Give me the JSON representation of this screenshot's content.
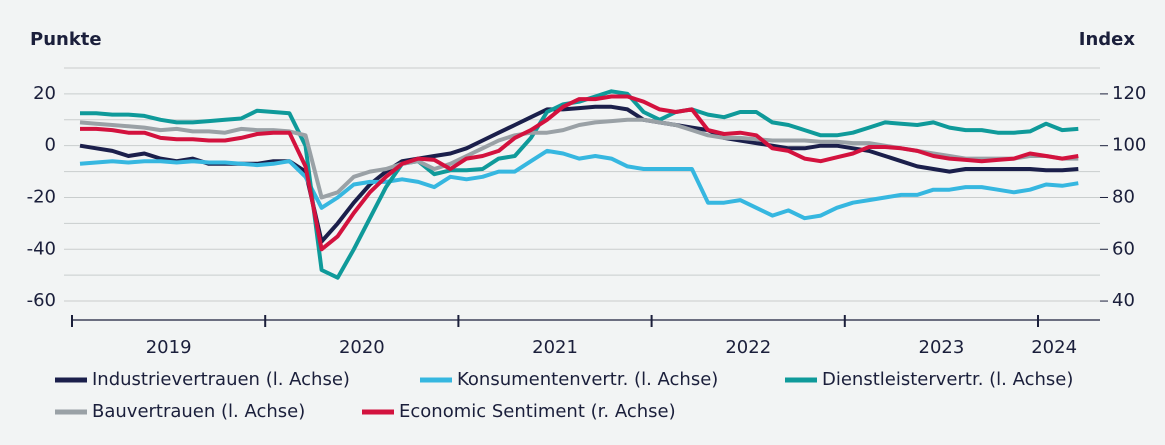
{
  "chart_data": {
    "type": "line",
    "ylabel": "Punkte",
    "y2label": "Index",
    "ylim": [
      -65,
      30
    ],
    "yticks": [
      -60,
      -40,
      -20,
      0,
      20
    ],
    "yminor": [
      -50,
      -30,
      -10,
      10,
      30
    ],
    "y2lim": [
      35,
      130
    ],
    "y2ticks": [
      40,
      60,
      80,
      100,
      120
    ],
    "grid": true,
    "legend": "bottom",
    "categories": [
      null,
      null,
      null,
      null,
      null,
      null,
      "2019",
      null,
      null,
      null,
      null,
      null,
      null,
      null,
      null,
      null,
      null,
      null,
      "2020",
      null,
      null,
      null,
      null,
      null,
      null,
      null,
      null,
      null,
      null,
      null,
      "2021",
      null,
      null,
      null,
      null,
      null,
      null,
      null,
      null,
      null,
      null,
      null,
      "2022",
      null,
      null,
      null,
      null,
      null,
      null,
      null,
      null,
      null,
      null,
      null,
      "2023",
      null,
      null,
      null,
      null,
      null,
      null,
      "2024",
      null
    ],
    "series": [
      {
        "name": "Industrievertrauen (l. Achse)",
        "color": "#1b1f4b",
        "values": [
          0,
          -1,
          -2,
          -4,
          -3,
          -5,
          -6,
          -5,
          -7,
          -7,
          -7,
          -7,
          -6,
          -6,
          -10,
          -37,
          -30,
          -22,
          -15,
          -10,
          -6,
          -5,
          -4,
          -3,
          -1,
          2,
          5,
          8,
          11,
          14,
          14,
          14.5,
          15,
          15,
          14,
          10,
          9,
          8,
          7,
          6,
          3,
          2,
          1,
          0,
          -1,
          -1,
          0,
          0,
          -1,
          -2,
          -4,
          -6,
          -8,
          -9,
          -10,
          -9,
          -9,
          -9,
          -9,
          -9,
          -9.5,
          -9.5,
          -9
        ]
      },
      {
        "name": "Konsumentenvertr. (l. Achse)",
        "color": "#36b7e0",
        "values": [
          -7,
          -6.5,
          -6,
          -6.5,
          -6,
          -6,
          -6.5,
          -6,
          -6.5,
          -6.5,
          -7,
          -7.5,
          -7,
          -6,
          -12,
          -24,
          -20,
          -15,
          -14,
          -14,
          -13,
          -14,
          -16,
          -12,
          -13,
          -12,
          -10,
          -10,
          -6,
          -2,
          -3,
          -5,
          -4,
          -5,
          -8,
          -9,
          -9,
          -9,
          -9,
          -22,
          -22,
          -21,
          -24,
          -27,
          -25,
          -28,
          -27,
          -24,
          -22,
          -21,
          -20,
          -19,
          -19,
          -17,
          -17,
          -16,
          -16,
          -17,
          -18,
          -17,
          -15,
          -15.5,
          -14.5
        ]
      },
      {
        "name": "Dienstleistervertr. (l. Achse)",
        "color": "#0f9a9a",
        "values": [
          12.5,
          12.5,
          12,
          12,
          11.5,
          10,
          9,
          9,
          9.5,
          10,
          10.5,
          13.5,
          13,
          12.5,
          0,
          -48,
          -51,
          -40,
          -28,
          -16,
          -7,
          -6,
          -11,
          -9.5,
          -9.5,
          -9,
          -5,
          -4,
          3,
          13,
          16,
          17,
          19,
          21,
          20,
          13,
          10,
          13,
          14,
          12,
          11,
          13,
          13,
          9,
          8,
          6,
          4,
          4,
          5,
          7,
          9,
          8.5,
          8,
          9,
          7,
          6,
          6,
          5,
          5,
          5.5,
          8.5,
          6,
          6.5
        ]
      },
      {
        "name": "Bauvertrauen (l. Achse)",
        "color": "#9aa1a6",
        "values": [
          9,
          8.5,
          8,
          7.5,
          7,
          6,
          6.5,
          5.5,
          5.5,
          5,
          6.5,
          6,
          6,
          5.5,
          4,
          -20,
          -18,
          -12,
          -10,
          -9,
          -7,
          -6,
          -9,
          -7,
          -4,
          -1,
          2,
          4,
          5,
          5,
          6,
          8,
          9,
          9.5,
          10,
          10,
          9,
          8,
          6,
          4,
          3,
          3,
          2.5,
          2,
          2,
          2,
          1.5,
          1.5,
          1,
          1,
          0,
          -1,
          -2,
          -3,
          -4,
          -5,
          -5,
          -5,
          -5,
          -4,
          -4,
          -5,
          -5
        ]
      },
      {
        "name": "Economic Sentiment (r. Achse)",
        "color": "#d3123e",
        "axis": "y2",
        "values": [
          106.5,
          106.5,
          106,
          105,
          105,
          103,
          102.5,
          102.5,
          102,
          102,
          103,
          104.5,
          105,
          105,
          92,
          60,
          65,
          74,
          82,
          88,
          93,
          95,
          94.5,
          91,
          95,
          96,
          98,
          103,
          106,
          110,
          115,
          118,
          118,
          119,
          119,
          117,
          114,
          113,
          114,
          106,
          104.5,
          105,
          104,
          99,
          98,
          95,
          94,
          95.5,
          97,
          99.5,
          99.5,
          99,
          98,
          96,
          95,
          94.5,
          94,
          94.5,
          95,
          97,
          96,
          95,
          96
        ]
      }
    ]
  }
}
